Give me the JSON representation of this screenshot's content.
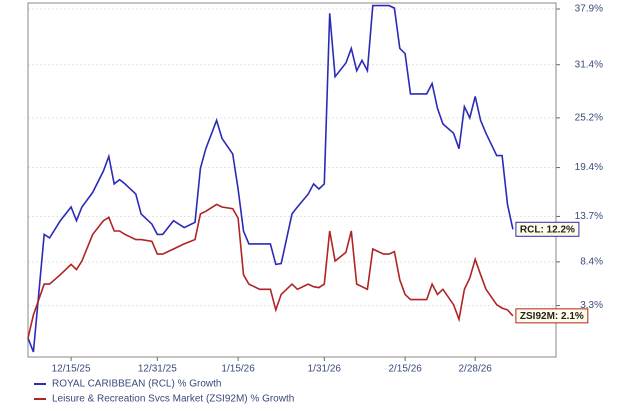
{
  "chart_data": {
    "type": "line",
    "x": [
      "12/7/25",
      "12/8/25",
      "12/10/25",
      "12/11/25",
      "12/13/25",
      "12/15/25",
      "12/16/25",
      "12/17/25",
      "12/19/25",
      "12/21/25",
      "12/22/25",
      "12/23/25",
      "12/24/25",
      "12/25/25",
      "12/27/25",
      "12/28/25",
      "12/30/25",
      "12/31/25",
      "1/1/26",
      "1/3/26",
      "1/5/26",
      "1/7/26",
      "1/8/26",
      "1/9/26",
      "1/11/26",
      "1/12/26",
      "1/14/26",
      "1/15/26",
      "1/16/26",
      "1/17/26",
      "1/19/26",
      "1/21/26",
      "1/22/26",
      "1/23/26",
      "1/25/26",
      "1/26/26",
      "1/28/26",
      "1/29/26",
      "1/30/26",
      "1/31/26",
      "2/1/26",
      "2/2/26",
      "2/4/26",
      "2/5/26",
      "2/6/26",
      "2/7/26",
      "2/8/26",
      "2/9/26",
      "2/11/26",
      "2/12/26",
      "2/13/26",
      "2/14/26",
      "2/15/26",
      "2/16/26",
      "2/19/26",
      "2/20/26",
      "2/21/26",
      "2/22/26",
      "2/24/26",
      "2/25/26",
      "2/26/26",
      "2/27/26",
      "2/28/26",
      "3/1/26",
      "3/2/26",
      "3/4/26",
      "3/5/26",
      "3/6/26",
      "3/7/26"
    ],
    "series": [
      {
        "name": "ROYAL CARIBBEAN (RCL) % Growth",
        "color": "#2b2bb8",
        "end_label": "RCL: 12.2%",
        "values": [
          -0.5,
          -2.1,
          11.6,
          11.2,
          13.2,
          14.8,
          13.2,
          14.8,
          16.5,
          19.0,
          20.7,
          17.5,
          18.0,
          17.5,
          16.3,
          14.0,
          12.8,
          11.6,
          11.6,
          13.2,
          12.4,
          13.0,
          19.3,
          21.6,
          24.9,
          22.8,
          21.0,
          16.9,
          12.0,
          10.5,
          10.5,
          10.5,
          8.1,
          8.2,
          14.0,
          14.8,
          16.3,
          17.5,
          16.9,
          17.5,
          37.4,
          30.0,
          31.6,
          33.3,
          30.7,
          31.9,
          30.7,
          38.3,
          38.3,
          38.3,
          38.0,
          33.3,
          32.7,
          28.0,
          28.0,
          29.2,
          26.3,
          24.5,
          23.4,
          21.6,
          26.5,
          25.2,
          27.7,
          24.9,
          23.4,
          20.8,
          20.8,
          15.1,
          12.2
        ]
      },
      {
        "name": "Leisure & Recreation Svcs Market (ZSI92M) % Growth",
        "color": "#b02424",
        "end_label": "ZSI92M: 2.1%",
        "values": [
          -0.5,
          2.2,
          5.8,
          5.8,
          6.9,
          8.1,
          7.5,
          8.5,
          11.6,
          13.2,
          13.6,
          12.0,
          12.0,
          11.6,
          11.0,
          11.0,
          10.8,
          9.3,
          9.3,
          9.9,
          10.5,
          11.0,
          14.0,
          14.3,
          15.1,
          14.8,
          14.6,
          13.5,
          6.9,
          5.8,
          5.2,
          5.2,
          2.8,
          4.6,
          5.8,
          5.2,
          5.8,
          5.5,
          5.4,
          5.8,
          12.0,
          8.5,
          9.5,
          12.0,
          5.8,
          5.5,
          5.2,
          9.9,
          9.3,
          9.3,
          9.6,
          6.3,
          4.6,
          4.0,
          4.0,
          5.8,
          4.6,
          5.2,
          3.4,
          1.7,
          5.2,
          6.5,
          8.7,
          6.9,
          5.2,
          3.4,
          3.0,
          2.8,
          2.1
        ]
      }
    ],
    "xlim": [
      "12/7/25",
      "3/15/26"
    ],
    "xticks": [
      "12/15/25",
      "12/31/25",
      "1/15/26",
      "1/31/26",
      "2/15/26",
      "2/28/26"
    ],
    "ylim": [
      -2.7,
      38.6
    ],
    "yticks": [
      {
        "value": 3.3,
        "label": "3.3%"
      },
      {
        "value": 8.4,
        "label": "8.4%"
      },
      {
        "value": 13.7,
        "label": "13.7%"
      },
      {
        "value": 19.4,
        "label": "19.4%"
      },
      {
        "value": 25.2,
        "label": "25.2%"
      },
      {
        "value": 31.4,
        "label": "31.4%"
      },
      {
        "value": 37.9,
        "label": "37.9%"
      }
    ],
    "grid": true
  }
}
